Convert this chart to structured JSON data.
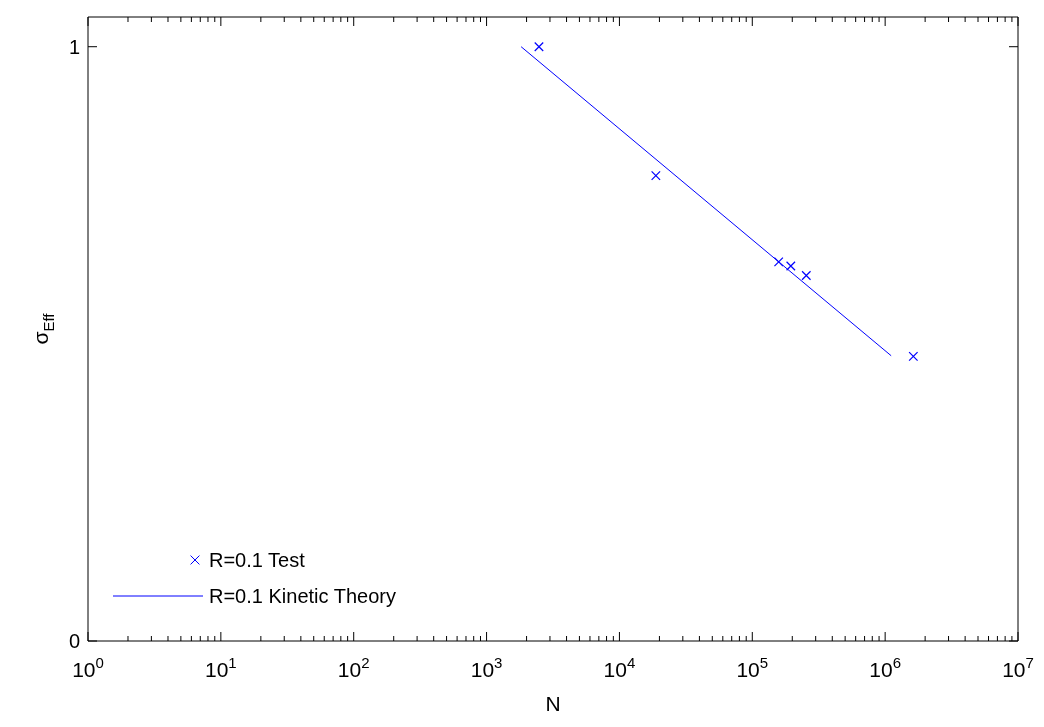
{
  "chart_data": {
    "type": "scatter",
    "xlabel": "N",
    "ylabel": "σ$_{Eff}$",
    "log": "x",
    "xlim": [
      1,
      10000000
    ],
    "ylim": [
      0,
      1.05
    ],
    "xticks": [
      {
        "value": 1,
        "label": "10$^{0}$"
      },
      {
        "value": 2,
        "label": null
      },
      {
        "value": 3,
        "label": null
      },
      {
        "value": 4,
        "label": null
      },
      {
        "value": 5,
        "label": null
      },
      {
        "value": 6,
        "label": null
      },
      {
        "value": 7,
        "label": null
      },
      {
        "value": 8,
        "label": null
      },
      {
        "value": 9,
        "label": null
      },
      {
        "value": 10,
        "label": "10$^{1}$"
      },
      {
        "value": 20,
        "label": null
      },
      {
        "value": 30,
        "label": null
      },
      {
        "value": 40,
        "label": null
      },
      {
        "value": 50,
        "label": null
      },
      {
        "value": 60,
        "label": null
      },
      {
        "value": 70,
        "label": null
      },
      {
        "value": 80,
        "label": null
      },
      {
        "value": 90,
        "label": null
      },
      {
        "value": 100,
        "label": "10$^{2}$"
      },
      {
        "value": 200,
        "label": null
      },
      {
        "value": 300,
        "label": null
      },
      {
        "value": 400,
        "label": null
      },
      {
        "value": 500,
        "label": null
      },
      {
        "value": 600,
        "label": null
      },
      {
        "value": 700,
        "label": null
      },
      {
        "value": 800,
        "label": null
      },
      {
        "value": 900,
        "label": null
      },
      {
        "value": 1000,
        "label": "10$^{3}$"
      },
      {
        "value": 2000,
        "label": null
      },
      {
        "value": 3000,
        "label": null
      },
      {
        "value": 4000,
        "label": null
      },
      {
        "value": 5000,
        "label": null
      },
      {
        "value": 6000,
        "label": null
      },
      {
        "value": 7000,
        "label": null
      },
      {
        "value": 8000,
        "label": null
      },
      {
        "value": 9000,
        "label": null
      },
      {
        "value": 10000,
        "label": "10$^{4}$"
      },
      {
        "value": 20000,
        "label": null
      },
      {
        "value": 30000,
        "label": null
      },
      {
        "value": 40000,
        "label": null
      },
      {
        "value": 50000,
        "label": null
      },
      {
        "value": 60000,
        "label": null
      },
      {
        "value": 70000,
        "label": null
      },
      {
        "value": 80000,
        "label": null
      },
      {
        "value": 90000,
        "label": null
      },
      {
        "value": 100000,
        "label": "10$^{5}$"
      },
      {
        "value": 200000,
        "label": null
      },
      {
        "value": 300000,
        "label": null
      },
      {
        "value": 400000,
        "label": null
      },
      {
        "value": 500000,
        "label": null
      },
      {
        "value": 600000,
        "label": null
      },
      {
        "value": 700000,
        "label": null
      },
      {
        "value": 800000,
        "label": null
      },
      {
        "value": 900000,
        "label": null
      },
      {
        "value": 1000000,
        "label": "10$^{6}$"
      },
      {
        "value": 2000000,
        "label": null
      },
      {
        "value": 3000000,
        "label": null
      },
      {
        "value": 4000000,
        "label": null
      },
      {
        "value": 5000000,
        "label": null
      },
      {
        "value": 6000000,
        "label": null
      },
      {
        "value": 7000000,
        "label": null
      },
      {
        "value": 8000000,
        "label": null
      },
      {
        "value": 9000000,
        "label": null
      },
      {
        "value": 10000000,
        "label": "10$^{7}$"
      }
    ],
    "yticks": [
      0,
      1
    ],
    "grid": false,
    "legend": "bottom left",
    "series": [
      {
        "name": "R=0.1 Test",
        "type": "scatter",
        "marker": "cross",
        "color": "#0000ff",
        "x": [
          2480,
          18800,
          158000,
          195000,
          255000,
          1630000
        ],
        "values": [
          1.0,
          0.783,
          0.638,
          0.631,
          0.615,
          0.479
        ]
      },
      {
        "name": "R=0.1 Kinetic Theory",
        "type": "line",
        "marker": "none",
        "line_style": "solid",
        "color": "#0000ff",
        "x": [
          1820,
          1110000
        ],
        "values": [
          1.0,
          0.48
        ]
      }
    ]
  }
}
